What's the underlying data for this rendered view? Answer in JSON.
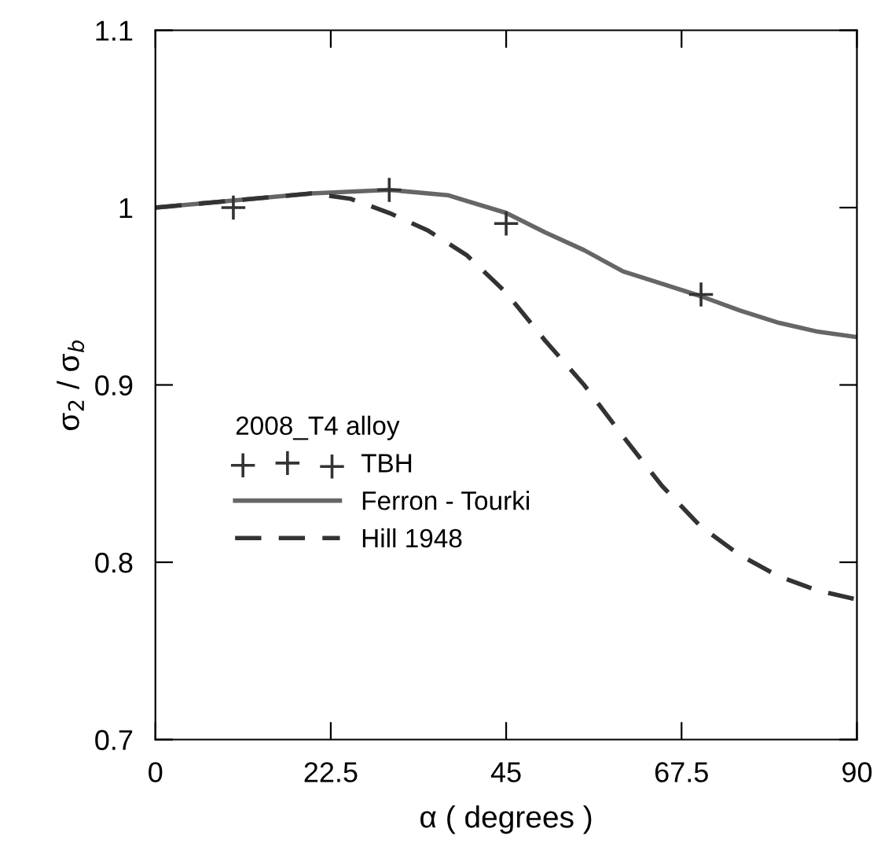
{
  "chart_data": {
    "type": "line",
    "xlabel": "α ( degrees )",
    "ylabel": "σ$_{2}$ / σ$_{b}$",
    "legend_title": "2008_T4 alloy",
    "legend": "center left",
    "xlim": [
      0,
      90
    ],
    "xticks": [
      0,
      22.5,
      45,
      67.5,
      90
    ],
    "ylim": [
      0.7,
      1.1
    ],
    "yticks": [
      0.7,
      0.8,
      0.9,
      1,
      1.1
    ],
    "grid": false,
    "series": [
      {
        "name": "TBH",
        "type": "scatter",
        "marker": "cross",
        "color": "#333333",
        "x": [
          10,
          30,
          45,
          70
        ],
        "values": [
          1.0,
          1.01,
          0.991,
          0.951
        ]
      },
      {
        "name": "Ferron - Tourki",
        "line_style": "solid",
        "color": "#666666",
        "x": [
          0,
          10,
          20,
          30,
          37.5,
          45,
          50,
          55,
          60,
          65,
          70,
          75,
          80,
          85,
          90
        ],
        "values": [
          1.0,
          1.004,
          1.008,
          1.01,
          1.007,
          0.997,
          0.986,
          0.976,
          0.964,
          0.957,
          0.95,
          0.942,
          0.935,
          0.93,
          0.927
        ]
      },
      {
        "name": "Hill 1948",
        "line_style": "dashed",
        "color": "#333333",
        "x": [
          0,
          10,
          20,
          25,
          30,
          35,
          40,
          45,
          50,
          55,
          60,
          65,
          70,
          75,
          80,
          85,
          90
        ],
        "values": [
          1.0,
          1.004,
          1.008,
          1.005,
          0.997,
          0.987,
          0.973,
          0.952,
          0.925,
          0.9,
          0.871,
          0.843,
          0.82,
          0.804,
          0.792,
          0.784,
          0.779
        ]
      }
    ]
  }
}
